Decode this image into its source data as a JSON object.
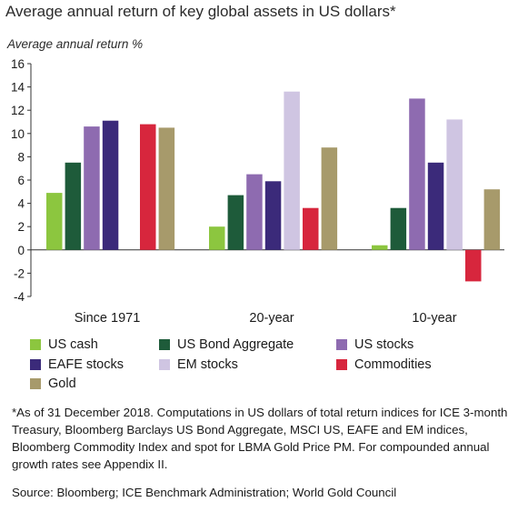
{
  "chart_data": {
    "type": "bar",
    "title": "Average annual return of key global assets in US dollars*",
    "ylabel": "Average annual return  %",
    "xlabel": "",
    "categories": [
      "Since 1971",
      "20-year",
      "10-year"
    ],
    "ylim": [
      -4,
      16
    ],
    "yticks": [
      -4,
      -2,
      0,
      2,
      4,
      6,
      8,
      10,
      12,
      14,
      16
    ],
    "grid": false,
    "legend_position": "bottom",
    "series": [
      {
        "name": "US cash",
        "color": "#8cc63f",
        "values": [
          4.9,
          2.0,
          0.4
        ]
      },
      {
        "name": "US Bond Aggregate",
        "color": "#1e5b3a",
        "values": [
          7.5,
          4.7,
          3.6
        ]
      },
      {
        "name": "US stocks",
        "color": "#8e6bb0",
        "values": [
          10.6,
          6.5,
          13.0
        ]
      },
      {
        "name": "EAFE stocks",
        "color": "#3b2a7a",
        "values": [
          11.1,
          5.9,
          7.5
        ]
      },
      {
        "name": "EM stocks",
        "color": "#cfc5e2",
        "values": [
          null,
          13.6,
          11.2
        ]
      },
      {
        "name": "Commodities",
        "color": "#d7263d",
        "values": [
          10.8,
          3.6,
          -2.7
        ]
      },
      {
        "name": "Gold",
        "color": "#a79a6b",
        "values": [
          10.5,
          8.8,
          5.2
        ]
      }
    ]
  },
  "notes": "*As of 31 December 2018. Computations in US dollars of total return indices for ICE 3-month Treasury, Bloomberg Barclays US Bond Aggregate, MSCI US, EAFE and EM indices, Bloomberg Commodity Index and spot for LBMA Gold Price PM. For compounded annual growth rates see Appendix II.",
  "source": "Source: Bloomberg; ICE Benchmark Administration; World Gold Council"
}
